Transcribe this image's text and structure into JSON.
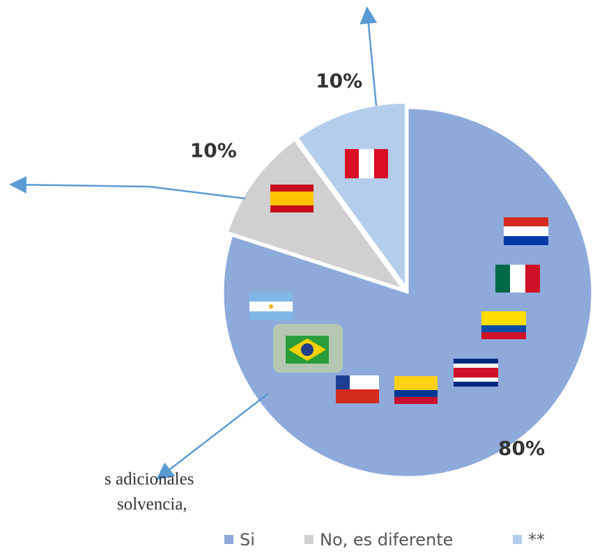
{
  "chart_data": {
    "type": "pie",
    "categories": [
      "Si",
      "No, es diferente",
      "**"
    ],
    "values": [
      80,
      10,
      10
    ],
    "value_labels": [
      "80%",
      "10%",
      "10%"
    ],
    "colors": [
      "#8eaadb",
      "#d0d0d0",
      "#b4cdeb"
    ],
    "annotations": [
      "s adicionales",
      "solvencia,"
    ]
  }
}
